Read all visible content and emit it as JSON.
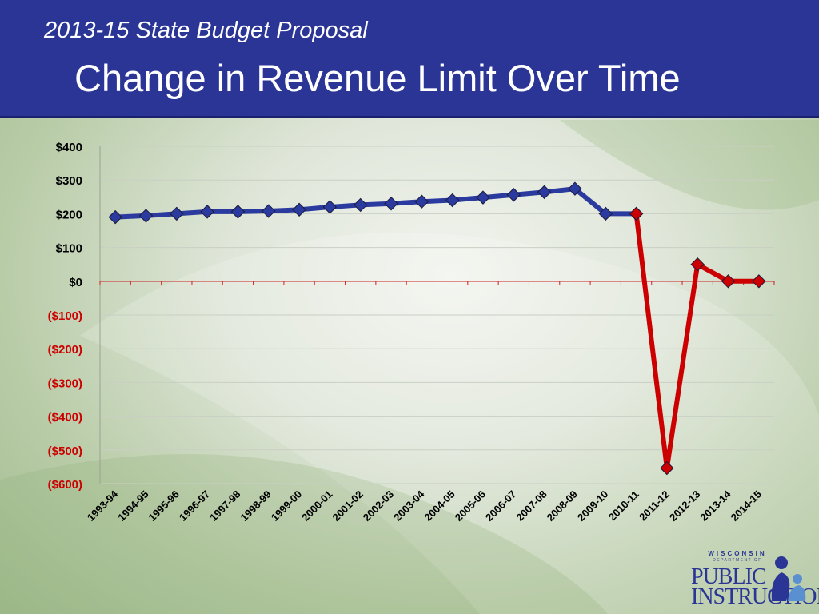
{
  "slide": {
    "subtitle": "2013-15 State Budget Proposal",
    "title": "Change in Revenue Limit Over Time"
  },
  "logo": {
    "line1": "WISCONSIN",
    "line2": "DEPARTMENT OF",
    "line3": "PUBLIC",
    "line4": "INSTRUCTION"
  },
  "colors": {
    "header": "#2a3596",
    "historical_line": "#2b3a9e",
    "proposal_line": "#cc0000",
    "negative_tick": "#cc0000",
    "positive_tick": "#000000"
  },
  "chart_data": {
    "type": "line",
    "categories": [
      "1993-94",
      "1994-95",
      "1995-96",
      "1996-97",
      "1997-98",
      "1998-99",
      "1999-00",
      "2000-01",
      "2001-02",
      "2002-03",
      "2003-04",
      "2004-05",
      "2005-06",
      "2006-07",
      "2007-08",
      "2008-09",
      "2009-10",
      "2010-11",
      "2011-12",
      "2012-13",
      "2013-14",
      "2014-15"
    ],
    "series": [
      {
        "color": "#2b3a9e",
        "values": [
          190,
          194,
          200,
          206,
          206,
          208,
          212,
          220,
          226,
          230,
          236,
          240,
          248,
          256,
          264,
          274,
          200,
          200,
          null,
          null,
          null,
          null
        ]
      },
      {
        "color": "#cc0000",
        "values": [
          null,
          null,
          null,
          null,
          null,
          null,
          null,
          null,
          null,
          null,
          null,
          null,
          null,
          null,
          null,
          null,
          null,
          200,
          -554,
          50,
          0,
          0
        ]
      }
    ],
    "ylim": [
      -600,
      400
    ],
    "yticks": [
      400,
      300,
      200,
      100,
      0,
      -100,
      -200,
      -300,
      -400,
      -500,
      -600
    ],
    "ytick_labels": [
      "$400",
      "$300",
      "$200",
      "$100",
      "$0",
      "($100)",
      "($200)",
      "($300)",
      "($400)",
      "($500)",
      "($600)"
    ],
    "grid": true,
    "legend": "none"
  }
}
